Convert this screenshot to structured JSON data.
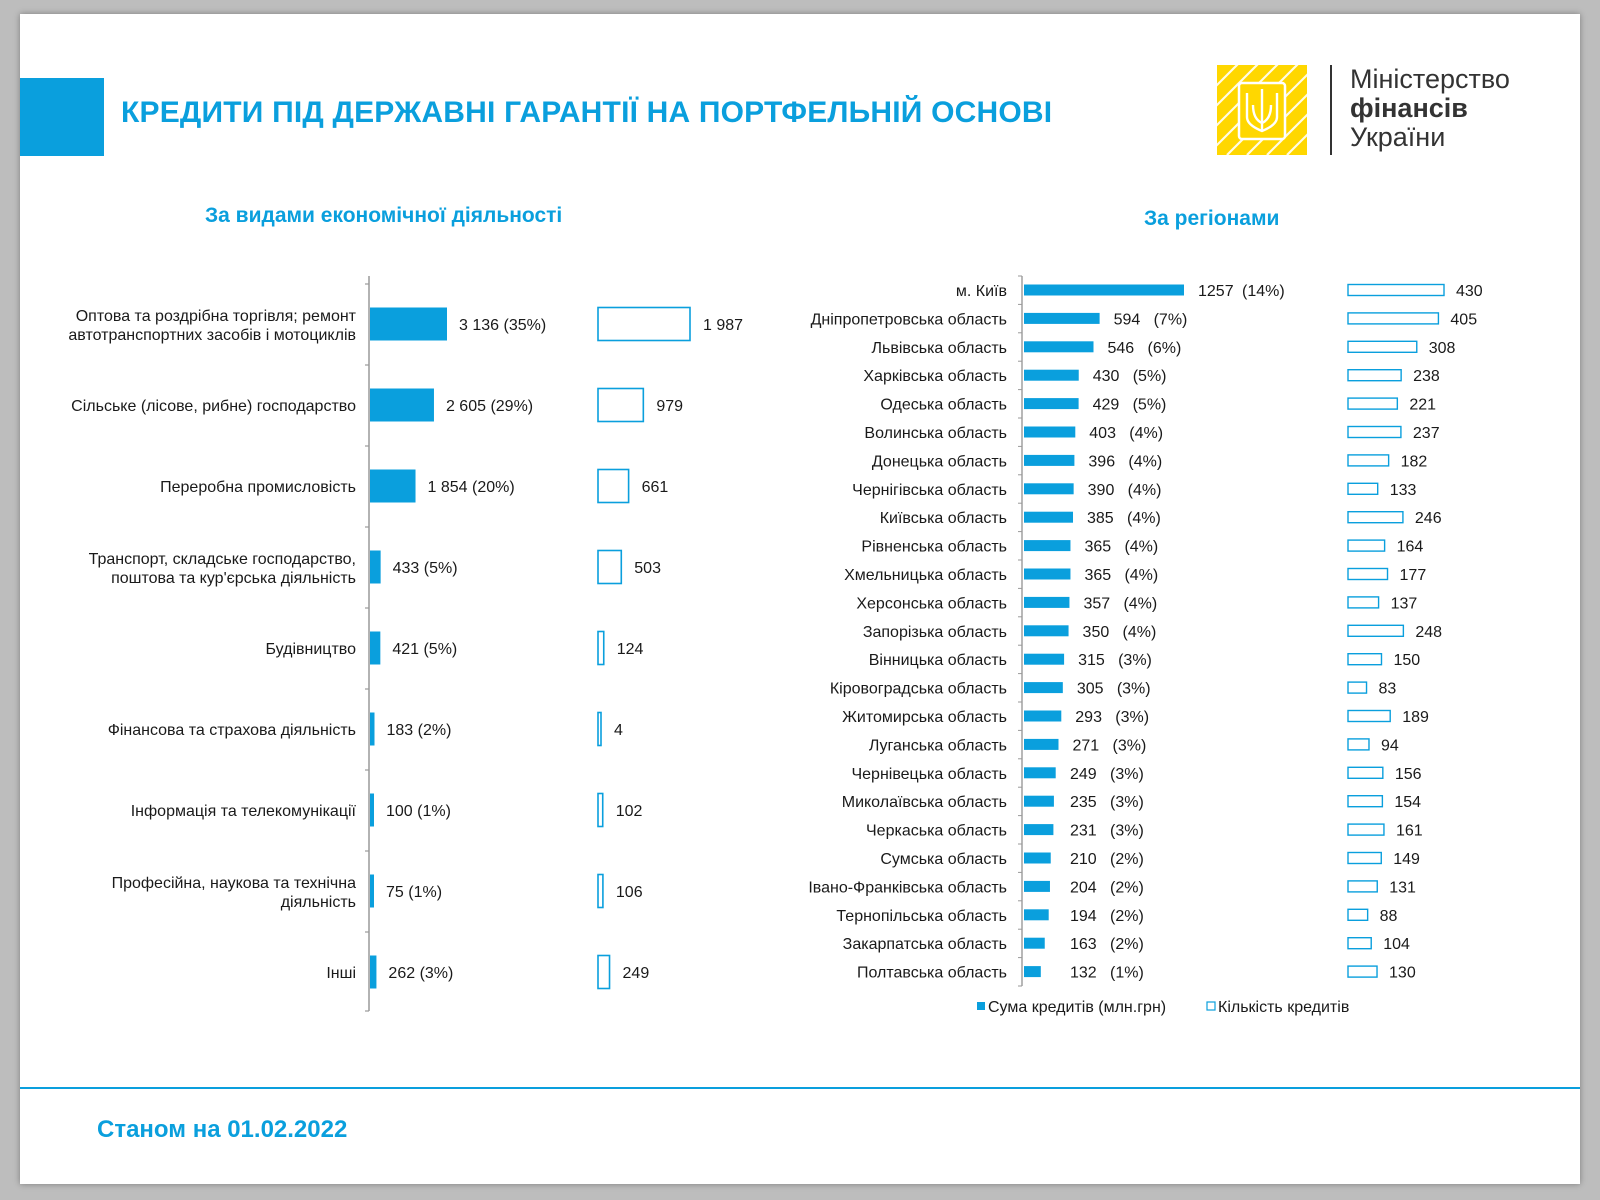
{
  "title": "КРЕДИТИ ПІД ДЕРЖАВНІ ГАРАНТІЇ НА ПОРТФЕЛЬНІЙ ОСНОВІ",
  "logo": {
    "line1": "Міністерство",
    "line2": "фінансів",
    "line3": "України",
    "icon": "trident-emblem-icon"
  },
  "footer": {
    "date_text": "Станом на 01.02.2022"
  },
  "colors": {
    "accent": "#0a9fdd",
    "emblem": "#ffd700"
  },
  "chart_data": [
    {
      "type": "bar",
      "orientation": "horizontal",
      "title": "За видами економічної діяльності",
      "categories": [
        [
          "Оптова та роздрібна торгівля; ремонт",
          "автотранспортних засобів і мотоциклів"
        ],
        [
          "Сільське (лісове, рибне) господарство"
        ],
        [
          "Переробна промисловість"
        ],
        [
          "Транспорт, складське господарство,",
          "поштова та кур'єрська діяльність"
        ],
        [
          "Будівництво"
        ],
        [
          "Фінансова та страхова діяльність"
        ],
        [
          "Інформація та телекомунікації"
        ],
        [
          "Професійна, наукова та технічна",
          "діяльність"
        ],
        [
          "Інші"
        ]
      ],
      "series": [
        {
          "name": "Сума кредитів (млн.грн)",
          "values": [
            3136,
            2605,
            1854,
            433,
            421,
            183,
            100,
            75,
            262
          ],
          "labels": [
            "3 136",
            "2 605",
            "1 854",
            "433",
            "421",
            "183",
            "100",
            "75",
            "262"
          ],
          "shares": [
            "(35%)",
            "(29%)",
            "(20%)",
            "(5%)",
            "(5%)",
            "(2%)",
            "(1%)",
            "(1%)",
            "(3%)"
          ]
        },
        {
          "name": "Кількість кредитів",
          "values": [
            1987,
            979,
            661,
            503,
            124,
            4,
            102,
            106,
            249
          ],
          "labels": [
            "1 987",
            "979",
            "661",
            "503",
            "124",
            "4",
            "102",
            "106",
            "249"
          ]
        }
      ]
    },
    {
      "type": "bar",
      "orientation": "horizontal",
      "title": "За регіонами",
      "categories": [
        "м. Київ",
        "Дніпропетровська область",
        "Львівська область",
        "Харківська область",
        "Одеська область",
        "Волинська область",
        "Донецька область",
        "Чернігівська область",
        "Київська область",
        "Рівненська область",
        "Хмельницька область",
        "Херсонська область",
        "Запорізька область",
        "Вінницька область",
        "Кіровоградська область",
        "Житомирська область",
        "Луганська область",
        "Чернівецька область",
        "Миколаївська область",
        "Черкаська область",
        "Сумська область",
        "Івано-Франківська область",
        "Тернопільська область",
        "Закарпатська область",
        "Полтавська область"
      ],
      "series": [
        {
          "name": "Сума кредитів (млн.грн)",
          "values": [
            1257,
            594,
            546,
            430,
            429,
            403,
            396,
            390,
            385,
            365,
            365,
            357,
            350,
            315,
            305,
            293,
            271,
            249,
            235,
            231,
            210,
            204,
            194,
            163,
            132
          ],
          "shares": [
            "(14%)",
            "(7%)",
            "(6%)",
            "(5%)",
            "(5%)",
            "(4%)",
            "(4%)",
            "(4%)",
            "(4%)",
            "(4%)",
            "(4%)",
            "(4%)",
            "(4%)",
            "(3%)",
            "(3%)",
            "(3%)",
            "(3%)",
            "(3%)",
            "(3%)",
            "(3%)",
            "(2%)",
            "(2%)",
            "(2%)",
            "(2%)",
            "(1%)"
          ]
        },
        {
          "name": "Кількість кредитів",
          "values": [
            430,
            405,
            308,
            238,
            221,
            237,
            182,
            133,
            246,
            164,
            177,
            137,
            248,
            150,
            83,
            189,
            94,
            156,
            154,
            161,
            149,
            131,
            88,
            104,
            130
          ]
        }
      ],
      "legend": [
        "Сума кредитів (млн.грн)",
        "Кількість кредитів"
      ],
      "legend_position": "bottom"
    }
  ]
}
